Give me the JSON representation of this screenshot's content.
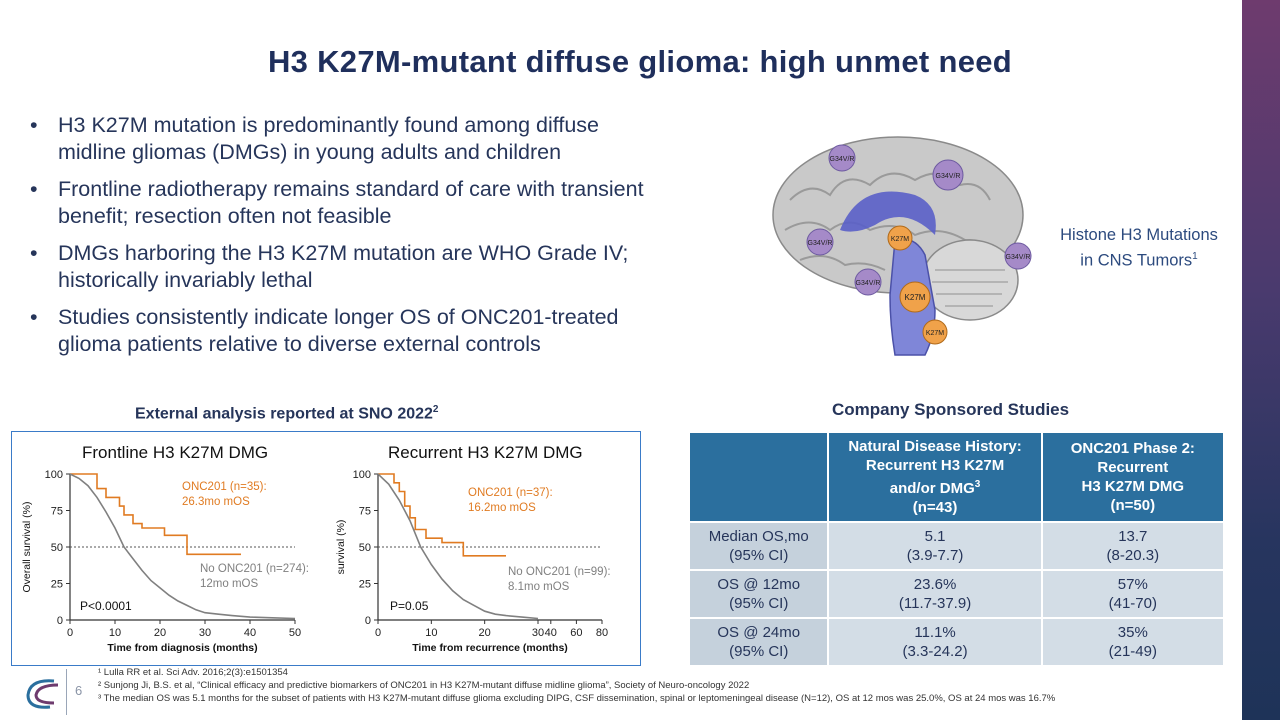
{
  "title": "H3 K27M-mutant diffuse glioma: high unmet need",
  "bullets": [
    {
      "line1": "H3 K27M mutation is predominantly found among diffuse",
      "line2": "midline gliomas (DMGs) in young adults and children"
    },
    {
      "line1": "Frontline radiotherapy remains standard of care with transient",
      "line2": "benefit; resection often not feasible"
    },
    {
      "line1": "DMGs harboring the H3 K27M mutation are WHO Grade IV;",
      "line2": "historically invariably lethal"
    },
    {
      "line1": "Studies consistently indicate longer OS of ONC201-treated",
      "line2": "glioma patients relative to diverse external controls"
    }
  ],
  "bullet_symbol": "•",
  "brain": {
    "caption_line1": "Histone H3 Mutations",
    "caption_line2": "in CNS Tumors",
    "caption_sup": "1",
    "labels": [
      "G34V/R",
      "G34V/R",
      "G34V/R",
      "G34V/R",
      "K27M",
      "G34V/R",
      "K27M",
      "K27M"
    ]
  },
  "sno": {
    "heading": "External analysis reported at SNO 2022",
    "sup": "2"
  },
  "company": {
    "heading": "Company Sponsored Studies"
  },
  "chart_data": [
    {
      "type": "line",
      "title": "Frontline H3 K27M DMG",
      "xlabel": "Time from diagnosis (months)",
      "ylabel": "Overall survival (%)",
      "xlim": [
        0,
        50
      ],
      "ylim": [
        0,
        100
      ],
      "xticks": [
        "0",
        "10",
        "20",
        "30",
        "40",
        "50"
      ],
      "yticks": [
        "0",
        "25",
        "50",
        "75",
        "100"
      ],
      "reference_line": 50,
      "pvalue": "P<0.0001",
      "series": [
        {
          "name": "ONC201 (n=35):",
          "label_line2": "26.3mo mOS",
          "color": "#e07b22",
          "points": [
            [
              0,
              100
            ],
            [
              6,
              100
            ],
            [
              6,
              90
            ],
            [
              8,
              90
            ],
            [
              8,
              84
            ],
            [
              11,
              84
            ],
            [
              11,
              78
            ],
            [
              12,
              78
            ],
            [
              12,
              72
            ],
            [
              14,
              72
            ],
            [
              14,
              66
            ],
            [
              16,
              66
            ],
            [
              16,
              63
            ],
            [
              21,
              63
            ],
            [
              21,
              58
            ],
            [
              26,
              58
            ],
            [
              26,
              45
            ],
            [
              38,
              45
            ]
          ]
        },
        {
          "name": "No ONC201 (n=274):",
          "label_line2": "12mo mOS",
          "color": "#808080",
          "points": [
            [
              0,
              100
            ],
            [
              2,
              97
            ],
            [
              4,
              92
            ],
            [
              6,
              84
            ],
            [
              8,
              74
            ],
            [
              10,
              63
            ],
            [
              12,
              50
            ],
            [
              14,
              42
            ],
            [
              16,
              34
            ],
            [
              18,
              27
            ],
            [
              20,
              22
            ],
            [
              22,
              17
            ],
            [
              24,
              13
            ],
            [
              26,
              10
            ],
            [
              28,
              7
            ],
            [
              30,
              5
            ],
            [
              33,
              4
            ],
            [
              36,
              3
            ],
            [
              40,
              2
            ],
            [
              45,
              1.5
            ],
            [
              50,
              1
            ]
          ]
        }
      ]
    },
    {
      "type": "line",
      "title": "Recurrent H3 K27M DMG",
      "xlabel": "Time from recurrence (months)",
      "ylabel": "survival (%)",
      "xlim": [
        0,
        80
      ],
      "ylim": [
        0,
        100
      ],
      "xticks": [
        "0",
        "10",
        "20",
        "30",
        "40",
        "60",
        "80"
      ],
      "yticks": [
        "0",
        "25",
        "50",
        "75",
        "100"
      ],
      "reference_line": 50,
      "pvalue": "P=0.05",
      "series": [
        {
          "name": "ONC201 (n=37):",
          "label_line2": "16.2mo mOS",
          "color": "#e07b22",
          "points": [
            [
              0,
              100
            ],
            [
              3,
              100
            ],
            [
              3,
              94
            ],
            [
              4,
              94
            ],
            [
              4,
              88
            ],
            [
              5,
              88
            ],
            [
              5,
              78
            ],
            [
              6,
              78
            ],
            [
              6,
              70
            ],
            [
              7,
              70
            ],
            [
              7,
              62
            ],
            [
              9,
              62
            ],
            [
              9,
              56
            ],
            [
              12,
              56
            ],
            [
              12,
              53
            ],
            [
              16,
              53
            ],
            [
              16,
              44
            ],
            [
              24,
              44
            ]
          ]
        },
        {
          "name": "No ONC201 (n=99):",
          "label_line2": "8.1mo mOS",
          "color": "#808080",
          "points": [
            [
              0,
              100
            ],
            [
              2,
              93
            ],
            [
              4,
              82
            ],
            [
              6,
              68
            ],
            [
              8,
              50
            ],
            [
              10,
              38
            ],
            [
              12,
              28
            ],
            [
              14,
              20
            ],
            [
              16,
              14
            ],
            [
              18,
              10
            ],
            [
              20,
              6
            ],
            [
              22,
              4
            ],
            [
              24,
              3
            ],
            [
              27,
              2
            ],
            [
              30,
              1
            ]
          ]
        }
      ]
    }
  ],
  "table": {
    "headers": [
      "",
      {
        "lines": [
          "Natural Disease History:",
          "Recurrent H3 K27M",
          "and/or DMG"
        ],
        "sup": "3",
        "n": "(n=43)"
      },
      {
        "lines": [
          "ONC201 Phase 2:",
          "Recurrent",
          "H3 K27M DMG"
        ],
        "sup": "",
        "n": "(n=50)"
      }
    ],
    "rows": [
      {
        "label": [
          "Median OS,mo",
          "(95% CI)"
        ],
        "nat": [
          "5.1",
          "(3.9-7.7)"
        ],
        "onc": [
          "13.7",
          "(8-20.3)"
        ]
      },
      {
        "label": [
          "OS @ 12mo",
          "(95% CI)"
        ],
        "nat": [
          "23.6%",
          "(11.7-37.9)"
        ],
        "onc": [
          "57%",
          "(41-70)"
        ]
      },
      {
        "label": [
          "OS @ 24mo",
          "(95% CI)"
        ],
        "nat": [
          "11.1%",
          "(3.3-24.2)"
        ],
        "onc": [
          "35%",
          "(21-49)"
        ]
      }
    ]
  },
  "footer": {
    "page": "6",
    "notes": [
      "¹ Lulla RR et al. Sci Adv. 2016;2(3):e1501354",
      "² Sunjong Ji, B.S. et al, “Clinical efficacy and predictive biomarkers of ONC201 in H3 K27M-mutant diffuse midline glioma”, Society of Neuro-oncology 2022",
      "³ The median OS was 5.1 months for the subset of patients with H3 K27M-mutant diffuse glioma excluding DIPG, CSF dissemination, spinal or leptomeningeal disease (N=12), OS at 12 mos was 25.0%, OS at 24 mos was 16.7%"
    ]
  },
  "colors": {
    "accent_purple": "#6e3b6e",
    "title_navy": "#1f2f5c",
    "table_header": "#2b6f9e",
    "table_cell": "#d3dde6",
    "onc201_orange": "#e07b22",
    "control_gray": "#808080",
    "chart_border": "#3a7bc8"
  }
}
